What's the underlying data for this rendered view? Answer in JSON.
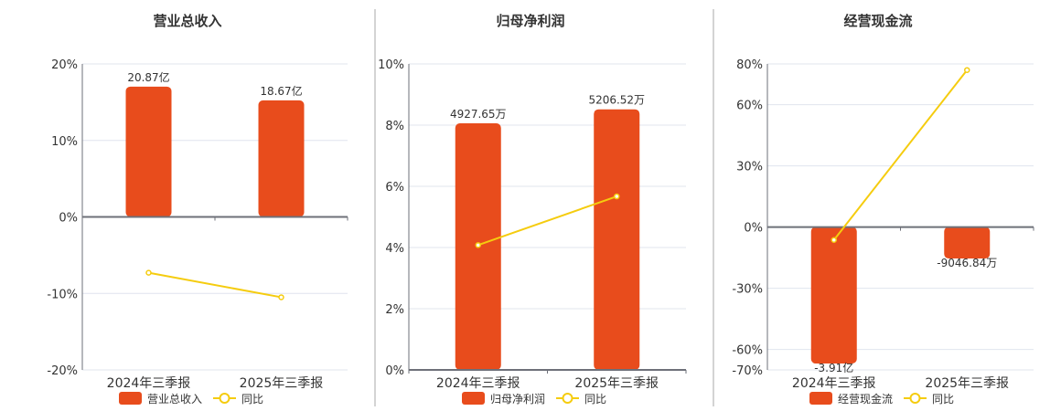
{
  "colors": {
    "bar": "#e84c1c",
    "line": "#f5cc0f",
    "grid": "#e0e4ee",
    "axis": "#6e7079",
    "text": "#333333",
    "divider": "#aaaaaa"
  },
  "chart_data": [
    {
      "type": "bar+line",
      "title": "营业总收入",
      "categories": [
        "2024年三季报",
        "2025年三季报"
      ],
      "bar_series": {
        "name": "营业总收入",
        "values": [
          20.87,
          18.67
        ],
        "labels": [
          "20.87亿",
          "18.67亿"
        ],
        "unit": "亿",
        "axis_range": [
          -24.5,
          24.5
        ]
      },
      "line_series": {
        "name": "同比",
        "values": [
          -7.3,
          -10.5
        ],
        "unit": "%"
      },
      "yaxis": {
        "range": [
          -20,
          20
        ],
        "ticks": [
          20,
          10,
          0,
          -10,
          -20
        ],
        "tick_labels": [
          "20%",
          "10%",
          "0%",
          "-10%",
          "-20%"
        ]
      },
      "grid": true,
      "legend": "bottom"
    },
    {
      "type": "bar+line",
      "title": "归母净利润",
      "categories": [
        "2024年三季报",
        "2025年三季报"
      ],
      "bar_series": {
        "name": "归母净利润",
        "values": [
          4927.65,
          5206.52
        ],
        "labels": [
          "4927.65万",
          "5206.52万"
        ],
        "unit": "万",
        "axis_range": [
          0,
          6114
        ]
      },
      "line_series": {
        "name": "同比",
        "values": [
          4.08,
          5.67
        ],
        "unit": "%"
      },
      "yaxis": {
        "range": [
          0,
          10
        ],
        "ticks": [
          10,
          8,
          6,
          4,
          2,
          0
        ],
        "tick_labels": [
          "10%",
          "8%",
          "6%",
          "4%",
          "2%",
          "0%"
        ]
      },
      "grid": true,
      "legend": "bottom"
    },
    {
      "type": "bar+line",
      "title": "经营现金流",
      "categories": [
        "2024年三季报",
        "2025年三季报"
      ],
      "bar_series": {
        "name": "经营现金流",
        "values": [
          -39100,
          -9046.84
        ],
        "labels": [
          "-3.91亿",
          "-9046.84万"
        ],
        "unit": "万",
        "axis_range": [
          -40930,
          46660
        ]
      },
      "line_series": {
        "name": "同比",
        "values": [
          -6.3,
          77.0
        ],
        "unit": "%"
      },
      "yaxis": {
        "range": [
          -70,
          80
        ],
        "ticks": [
          80,
          60,
          30,
          0,
          -30,
          -60,
          -70
        ],
        "tick_labels": [
          "80%",
          "60%",
          "30%",
          "0%",
          "-30%",
          "-60%",
          "-70%"
        ]
      },
      "grid": true,
      "legend": "bottom"
    }
  ]
}
